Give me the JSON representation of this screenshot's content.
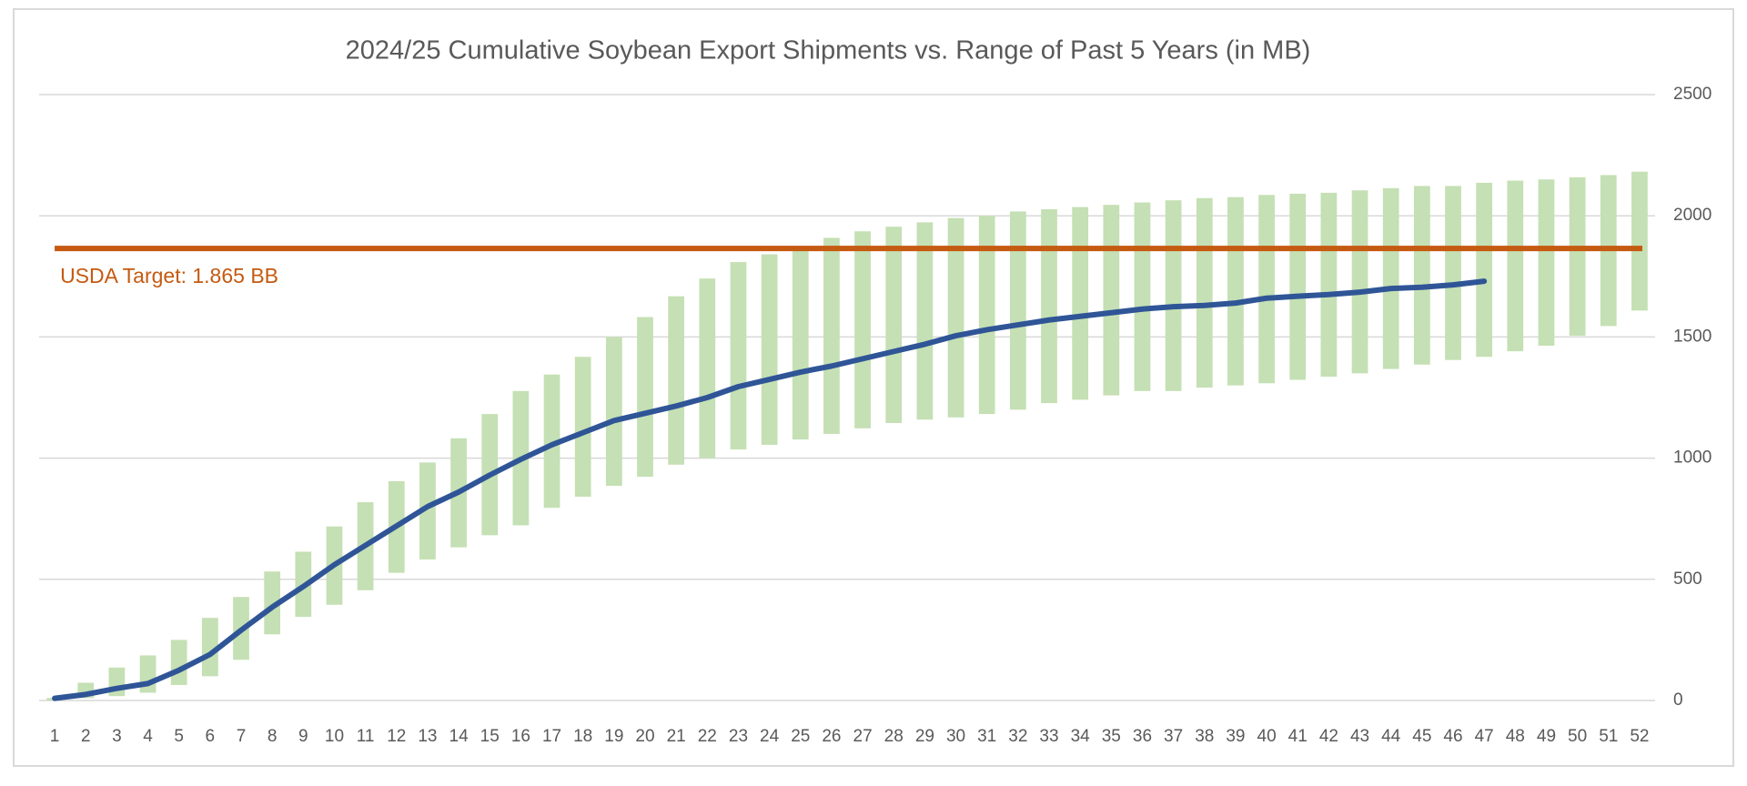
{
  "chart_data": {
    "type": "range_line",
    "title": "2024/25 Cumulative Soybean Export Shipments vs. Range of Past 5 Years (in MB)",
    "categories": [
      1,
      2,
      3,
      4,
      5,
      6,
      7,
      8,
      9,
      10,
      11,
      12,
      13,
      14,
      15,
      16,
      17,
      18,
      19,
      20,
      21,
      22,
      23,
      24,
      25,
      26,
      27,
      28,
      29,
      30,
      31,
      32,
      33,
      34,
      35,
      36,
      37,
      38,
      39,
      40,
      41,
      42,
      43,
      44,
      45,
      46,
      47,
      48,
      49,
      50,
      51,
      52
    ],
    "ranges": {
      "color": "#c5e0b4",
      "low": [
        0,
        10,
        18,
        32,
        64,
        100,
        168,
        273,
        345,
        395,
        455,
        527,
        582,
        632,
        682,
        723,
        795,
        841,
        886,
        923,
        973,
        1000,
        1036,
        1055,
        1077,
        1100,
        1123,
        1145,
        1159,
        1168,
        1182,
        1200,
        1227,
        1241,
        1259,
        1277,
        1277,
        1291,
        1300,
        1309,
        1323,
        1336,
        1350,
        1368,
        1386,
        1405,
        1418,
        1441,
        1464,
        1505,
        1545,
        1609
      ],
      "high": [
        10,
        73,
        136,
        186,
        250,
        341,
        427,
        532,
        614,
        718,
        818,
        905,
        982,
        1082,
        1182,
        1277,
        1345,
        1418,
        1500,
        1582,
        1668,
        1741,
        1809,
        1841,
        1859,
        1909,
        1936,
        1955,
        1973,
        1991,
        2000,
        2018,
        2027,
        2036,
        2045,
        2055,
        2064,
        2073,
        2077,
        2086,
        2091,
        2095,
        2105,
        2114,
        2123,
        2123,
        2136,
        2145,
        2150,
        2159,
        2168,
        2182
      ]
    },
    "series": [
      {
        "color": "#2f5597",
        "values": [
          9,
          25,
          50,
          70,
          125,
          190,
          290,
          385,
          470,
          560,
          640,
          720,
          800,
          860,
          930,
          995,
          1055,
          1105,
          1155,
          1185,
          1215,
          1250,
          1295,
          1325,
          1355,
          1380,
          1410,
          1440,
          1470,
          1505,
          1530,
          1550,
          1570,
          1585,
          1600,
          1615,
          1625,
          1630,
          1640,
          1660,
          1668,
          1675,
          1685,
          1700,
          1705,
          1715,
          1730,
          null,
          null,
          null,
          null,
          null
        ]
      }
    ],
    "target": {
      "value": 1865,
      "label": "USDA Target: 1.865 BB",
      "color": "#c55a11"
    },
    "ylim": [
      0,
      2500
    ],
    "yticks": [
      0,
      500,
      1000,
      1500,
      2000,
      2500
    ],
    "grid": true,
    "yaxis_side": "right"
  }
}
